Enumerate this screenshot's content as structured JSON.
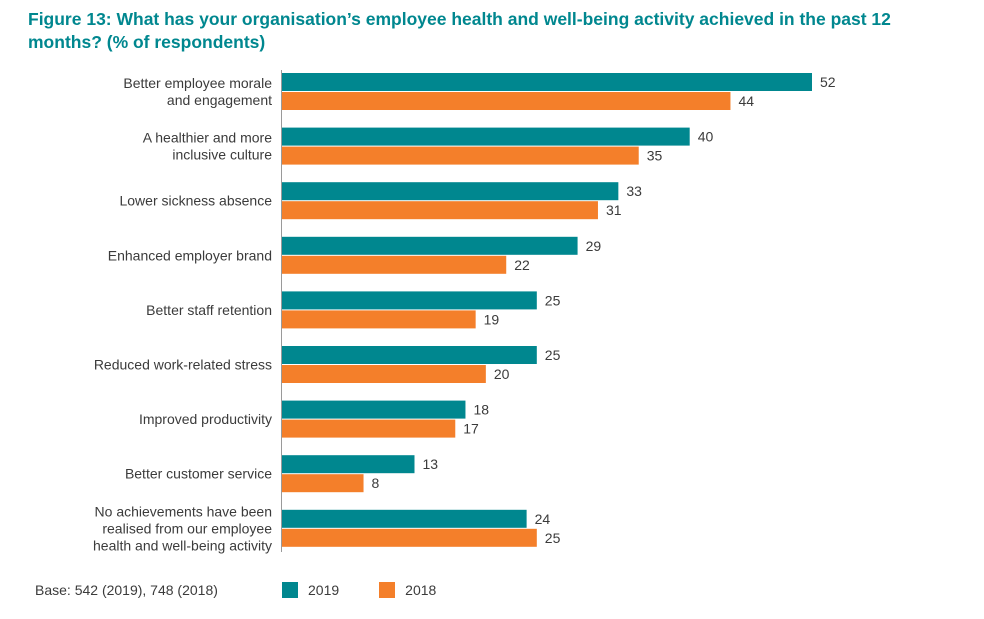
{
  "chart_data": {
    "type": "bar",
    "orientation": "horizontal",
    "title": "Figure 13: What has your organisation’s employee health and well-being activity achieved in the past 12 months? (% of respondents)",
    "categories": [
      [
        "Better employee morale",
        "and engagement"
      ],
      [
        "A healthier and more",
        "inclusive culture"
      ],
      [
        "Lower sickness absence"
      ],
      [
        "Enhanced employer brand"
      ],
      [
        "Better staff retention"
      ],
      [
        "Reduced work-related stress"
      ],
      [
        "Improved productivity"
      ],
      [
        "Better customer service"
      ],
      [
        "No achievements have been",
        "realised from our employee",
        "health and well-being activity"
      ]
    ],
    "series": [
      {
        "name": "2019",
        "color": "#00878f",
        "values": [
          52,
          40,
          33,
          29,
          25,
          25,
          18,
          13,
          24
        ]
      },
      {
        "name": "2018",
        "color": "#f47f2a",
        "values": [
          44,
          35,
          31,
          22,
          19,
          20,
          17,
          8,
          25
        ]
      }
    ],
    "xlim": [
      0,
      52
    ],
    "grid": false,
    "legend": "bottom"
  },
  "footer": {
    "base": "Base: 542 (2019), 748 (2018)"
  }
}
